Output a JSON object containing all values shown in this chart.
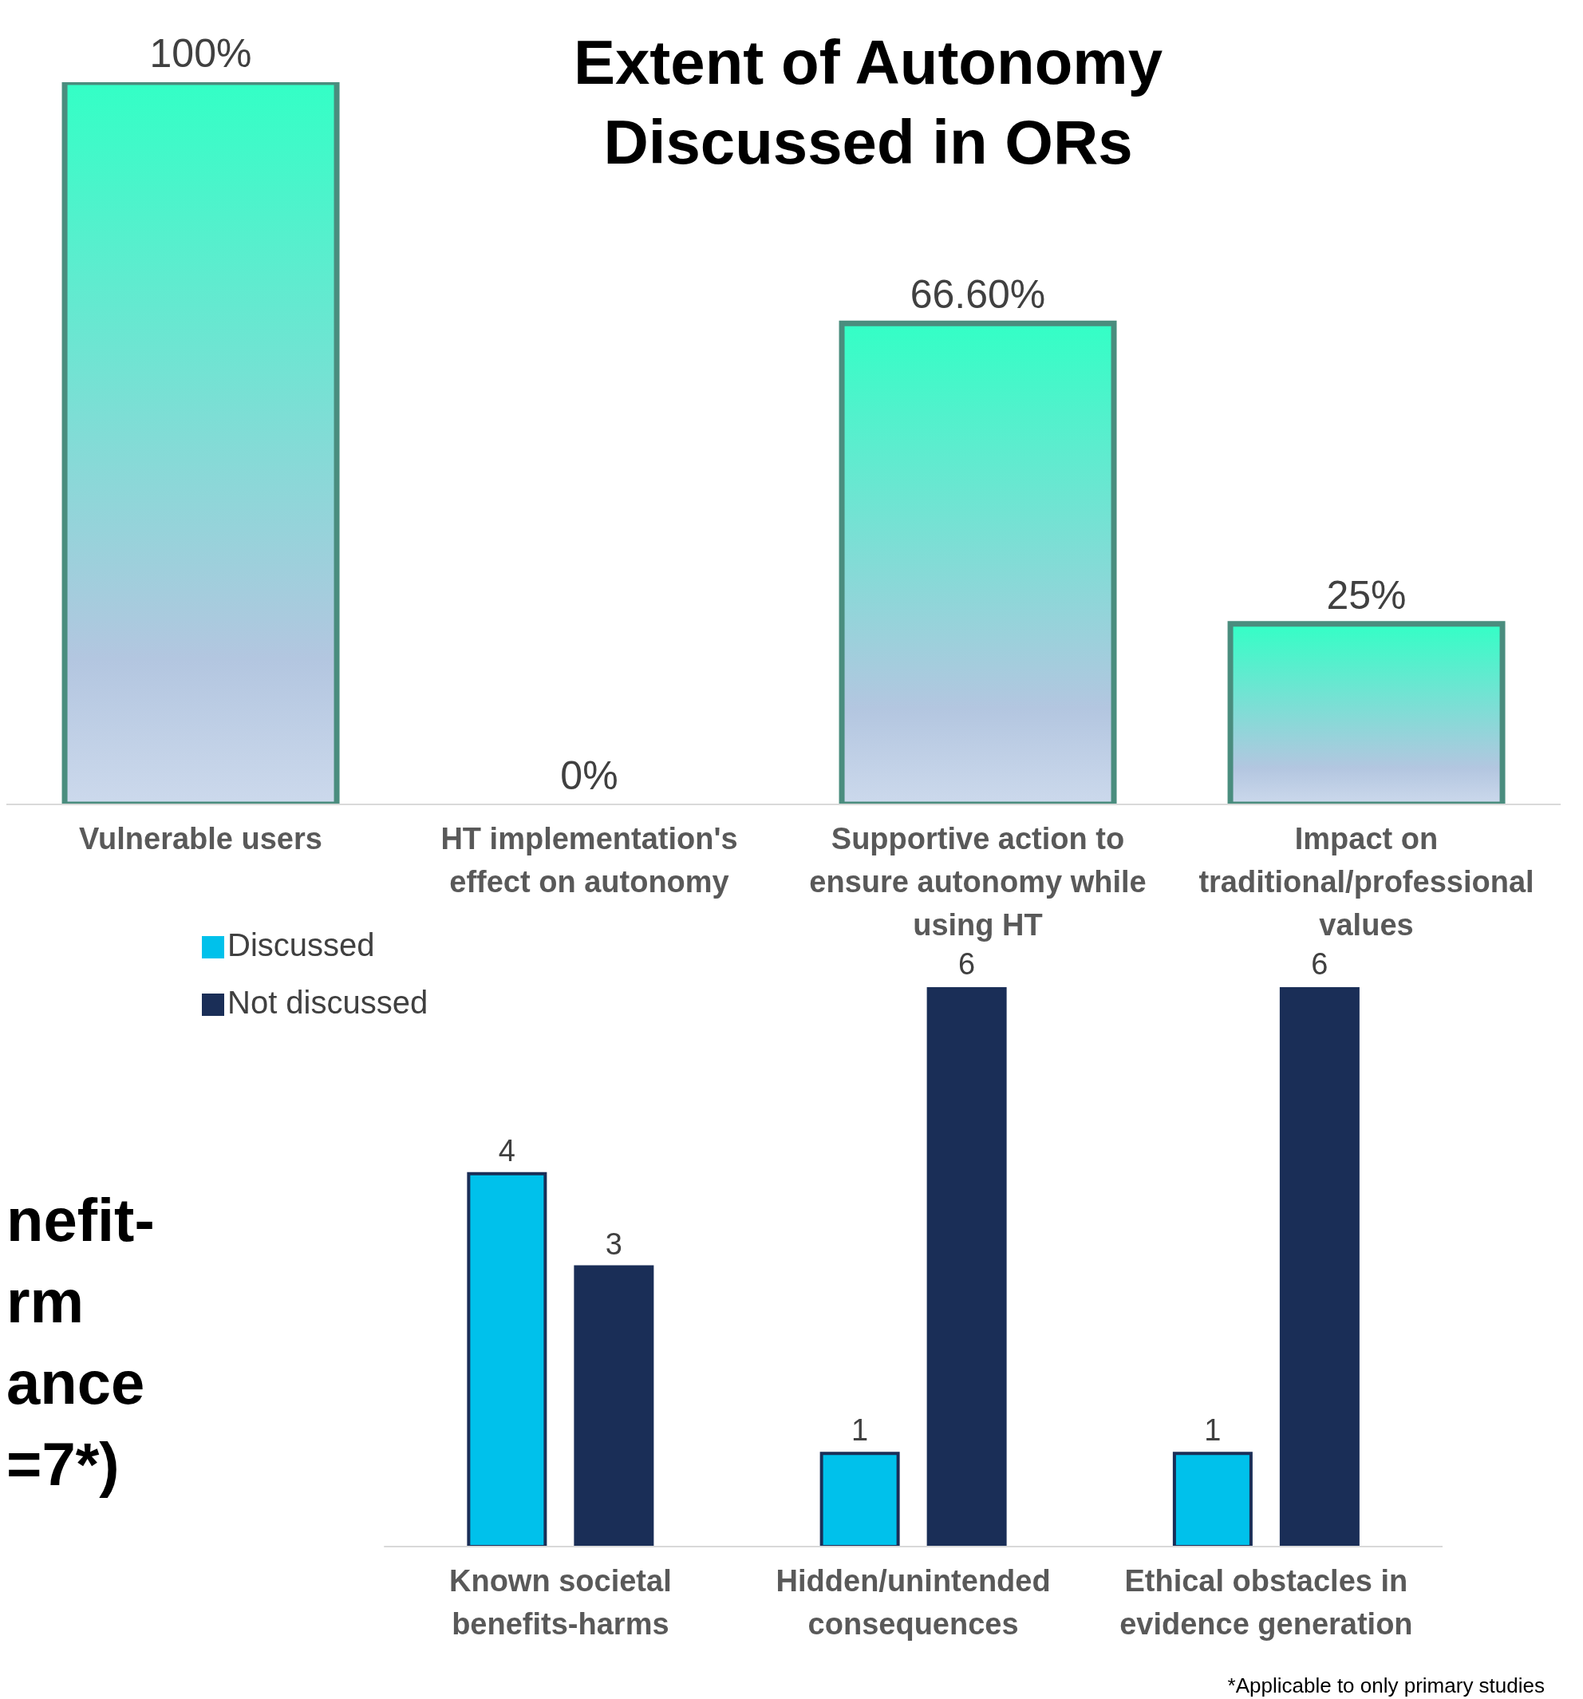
{
  "chart_data": [
    {
      "type": "bar",
      "title": "Extent of Autonomy Discussed in ORs",
      "categories": [
        "Vulnerable users",
        "HT implementation's effect on autonomy",
        "Supportive action to ensure autonomy while using HT",
        "Impact on traditional/professional values"
      ],
      "values": [
        100,
        0,
        66.6,
        25
      ],
      "value_labels": [
        "100%",
        "0%",
        "66.60%",
        "25%"
      ],
      "color": "#4a8d7e",
      "ylim": [
        0,
        100
      ],
      "grid": false,
      "legend": false
    },
    {
      "type": "bar",
      "title": "nefit- rm ance =7*)",
      "categories": [
        "Known societal benefits-harms",
        "Hidden/unintended consequences",
        "Ethical obstacles in evidence generation"
      ],
      "series": [
        {
          "name": "Discussed",
          "color": "#00c1eb",
          "values": [
            4,
            1,
            1
          ]
        },
        {
          "name": "Not discussed",
          "color": "#1a2e57",
          "values": [
            3,
            6,
            6
          ]
        }
      ],
      "ylim": [
        0,
        6
      ],
      "data_labels": true,
      "grid": false,
      "legend": "top left",
      "annotations": [
        "*Applicable to only primary studies"
      ]
    }
  ]
}
